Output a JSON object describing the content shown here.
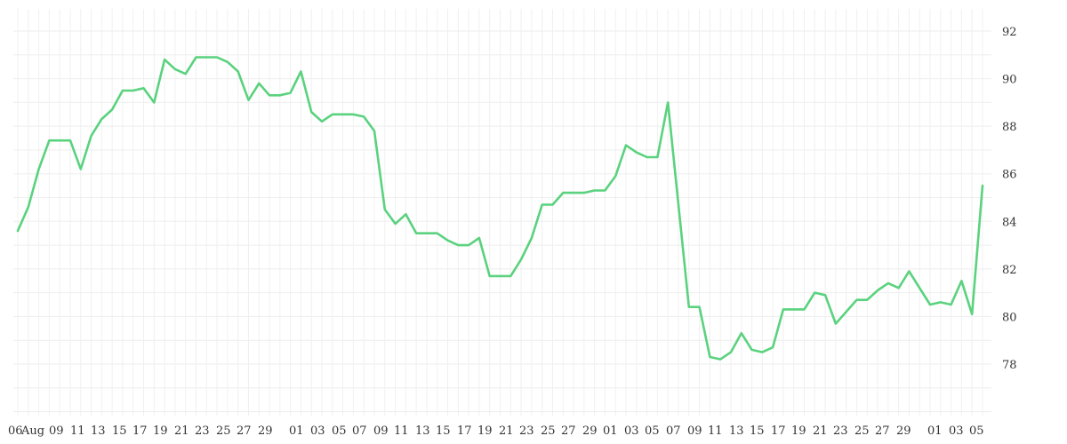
{
  "chart_data": {
    "type": "line",
    "title": "",
    "xlabel": "",
    "ylabel": "",
    "ylim": [
      76,
      92.5
    ],
    "y_ticks": [
      78,
      80,
      82,
      84,
      86,
      88,
      90,
      92
    ],
    "y_axis_side": "right",
    "grid": true,
    "line_color": "#5ad27e",
    "x_tick_labels": [
      "06",
      "Aug",
      "09",
      "11",
      "13",
      "15",
      "17",
      "19",
      "21",
      "23",
      "25",
      "27",
      "29",
      "01",
      "03",
      "05",
      "07",
      "09",
      "11",
      "13",
      "15",
      "17",
      "19",
      "21",
      "23",
      "25",
      "27",
      "29",
      "01",
      "03",
      "05",
      "07",
      "09",
      "11",
      "13",
      "15",
      "17",
      "19",
      "21",
      "23",
      "25",
      "27",
      "29",
      "01",
      "03",
      "05"
    ],
    "values": [
      83.6,
      84.6,
      86.2,
      87.4,
      87.4,
      87.4,
      86.2,
      87.6,
      88.3,
      88.7,
      89.5,
      89.5,
      89.6,
      89.0,
      90.8,
      90.4,
      90.2,
      90.9,
      90.9,
      90.9,
      90.7,
      90.3,
      89.1,
      89.8,
      89.3,
      89.3,
      89.4,
      90.3,
      88.6,
      88.2,
      88.5,
      88.5,
      88.5,
      88.4,
      87.8,
      84.5,
      83.9,
      84.3,
      83.5,
      83.5,
      83.5,
      83.2,
      83.0,
      83.0,
      83.3,
      81.7,
      81.7,
      81.7,
      82.4,
      83.3,
      84.7,
      84.7,
      85.2,
      85.2,
      85.2,
      85.3,
      85.3,
      85.9,
      87.2,
      86.9,
      86.7,
      86.7,
      89.0,
      84.7,
      80.4,
      80.4,
      78.3,
      78.2,
      78.5,
      79.3,
      78.6,
      78.5,
      78.7,
      80.3,
      80.3,
      80.3,
      81.0,
      80.9,
      79.7,
      80.2,
      80.7,
      80.7,
      81.1,
      81.4,
      81.2,
      81.9,
      81.2,
      80.5,
      80.6,
      80.5,
      81.5,
      80.1,
      85.5
    ]
  }
}
